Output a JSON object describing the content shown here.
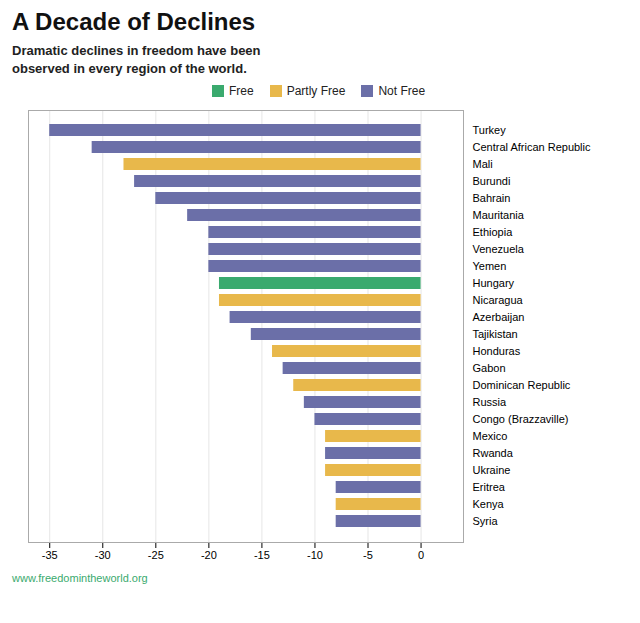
{
  "chart_data": {
    "type": "bar",
    "orientation": "horizontal",
    "title": "A Decade of Declines",
    "subtitle": "Dramatic declines in freedom have been\nobserved in every region of the world.",
    "footer": "www.freedomintheworld.org",
    "categories": [
      "Turkey",
      "Central African Republic",
      "Mali",
      "Burundi",
      "Bahrain",
      "Mauritania",
      "Ethiopia",
      "Venezuela",
      "Yemen",
      "Hungary",
      "Nicaragua",
      "Azerbaijan",
      "Tajikistan",
      "Honduras",
      "Gabon",
      "Dominican Republic",
      "Russia",
      "Congo (Brazzaville)",
      "Mexico",
      "Rwanda",
      "Ukraine",
      "Eritrea",
      "Kenya",
      "Syria"
    ],
    "values": [
      -35,
      -31,
      -28,
      -27,
      -25,
      -22,
      -20,
      -20,
      -20,
      -19,
      -19,
      -18,
      -16,
      -14,
      -13,
      -12,
      -11,
      -10,
      -9,
      -9,
      -9,
      -8,
      -8,
      -8
    ],
    "colors": [
      "#6b6fa8",
      "#6b6fa8",
      "#e8b84b",
      "#6b6fa8",
      "#6b6fa8",
      "#6b6fa8",
      "#6b6fa8",
      "#6b6fa8",
      "#6b6fa8",
      "#3aaa6e",
      "#e8b84b",
      "#6b6fa8",
      "#6b6fa8",
      "#e8b84b",
      "#6b6fa8",
      "#e8b84b",
      "#6b6fa8",
      "#6b6fa8",
      "#e8b84b",
      "#6b6fa8",
      "#e8b84b",
      "#6b6fa8",
      "#e8b84b",
      "#6b6fa8"
    ],
    "legend_entries": [
      {
        "name": "Free",
        "color": "#3aaa6e"
      },
      {
        "name": "Partly Free",
        "color": "#e8b84b"
      },
      {
        "name": "Not Free",
        "color": "#6b6fa8"
      }
    ],
    "legend": "top",
    "xlim": [
      -37,
      4
    ],
    "xticks": [
      -35,
      -30,
      -25,
      -20,
      -15,
      -10,
      -5,
      0
    ],
    "grid": true
  }
}
